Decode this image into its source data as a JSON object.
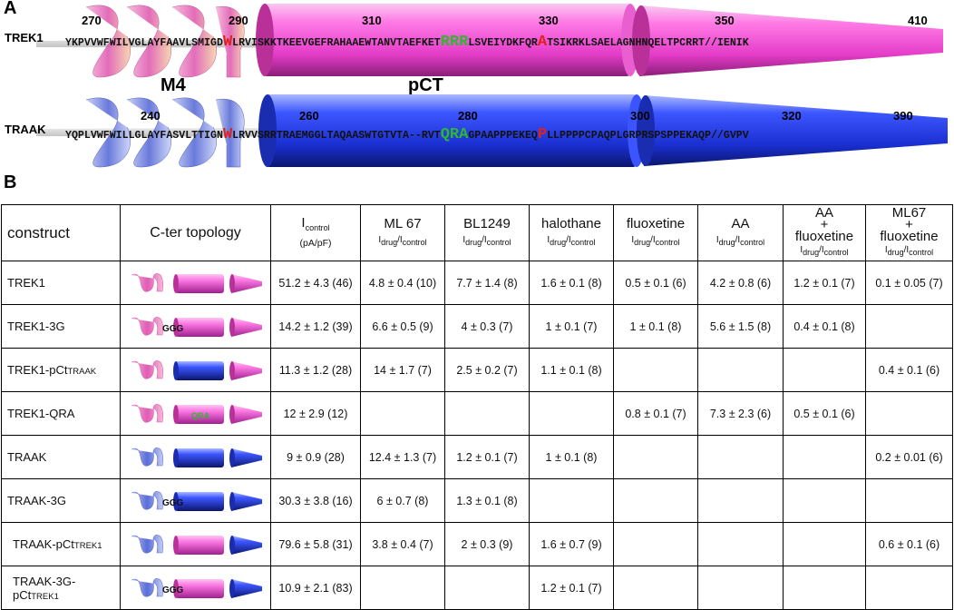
{
  "panels": {
    "a": "A",
    "b": "B"
  },
  "trek1": {
    "label": "TREK1",
    "sequence_pre": "YKPVVWFWILVGLAYFAAVLSMIGD",
    "red_w": "W",
    "sequence_mid": "LRVISKKTKEEVGEFRAHAAEWTANVTAEFKET",
    "green_motif": "RRR",
    "sequence_mid2": "LSVEIYDKFQR",
    "red_a": "A",
    "sequence_post": "TSIKRKLSAELAGNHNQELTPCRRT//IENIK",
    "positions": [
      "270",
      "290",
      "310",
      "330",
      "350",
      "410"
    ]
  },
  "traak": {
    "label": "TRAAK",
    "sequence_pre": "YQPLVWFWILLGLAYFASVLTTIGN",
    "red_w": "W",
    "sequence_mid": "LRVVSRRTRAEMGGLTAQAASWTGTVTA--RVT",
    "green_motif": "QRA",
    "sequence_mid2": "GPAAPPPEKEQ",
    "red_p": "P",
    "sequence_post": "LLPPPPCPAQPLGRPRSPSPPEKAQP//GVPV",
    "positions": [
      "240",
      "260",
      "280",
      "300",
      "320",
      "390"
    ]
  },
  "labels": {
    "m4": "M4",
    "pct": "pCT"
  },
  "colors": {
    "trek1": "#e85fd0",
    "traak": "#2a3fe0",
    "motif_green": "#2db82d",
    "red": "#e0201e"
  },
  "table": {
    "headers": {
      "construct": "construct",
      "topology": "C-ter topology",
      "icontrol_main": "I",
      "icontrol_sub": "control",
      "icontrol_unit": "(pA/pF)",
      "cols": [
        {
          "name": "ML 67"
        },
        {
          "name": "BL1249"
        },
        {
          "name": "halothane"
        },
        {
          "name": "fluoxetine"
        },
        {
          "name": "AA"
        },
        {
          "name1": "AA",
          "plus": "+",
          "name2": "fluoxetine"
        },
        {
          "name1": "ML67",
          "plus": "+",
          "name2": "fluoxetine"
        }
      ],
      "ratio_i": "I",
      "ratio_drug": "drug",
      "ratio_slash": "/I",
      "ratio_control": "control"
    },
    "rows": [
      {
        "construct": "TREK1",
        "construct_sub": "",
        "topology": "trek1",
        "icontrol": "51.2 ± 4.3 (46)",
        "ml67": "4.8 ± 0.4 (10)",
        "bl1249": "7.7 ± 1.4 (8)",
        "halothane": "1.6 ± 0.1 (8)",
        "fluoxetine": "0.5 ± 0.1 (6)",
        "aa": "4.2 ± 0.8 (6)",
        "aa_fluox": "1.2 ± 0.1 (7)",
        "ml67_fluox": "0.1 ± 0.05 (7)"
      },
      {
        "construct": "TREK1-3G",
        "construct_sub": "",
        "topology": "trek1-3g",
        "icontrol": "14.2 ± 1.2 (39)",
        "ml67": "6.6 ± 0.5 (9)",
        "bl1249": "4 ± 0.3 (7)",
        "halothane": "1 ± 0.1 (7)",
        "fluoxetine": "1 ± 0.1 (8)",
        "aa": "5.6 ± 1.5 (8)",
        "aa_fluox": "0.4 ± 0.1 (8)",
        "ml67_fluox": ""
      },
      {
        "construct": "TREK1-pCt",
        "construct_sub": "TRAAK",
        "topology": "trek1-pct",
        "icontrol": "11.3 ± 1.2 (28)",
        "ml67": "14 ± 1.7 (7)",
        "bl1249": "2.5 ± 0.2 (7)",
        "halothane": "1.1 ± 0.1 (8)",
        "fluoxetine": "",
        "aa": "",
        "aa_fluox": "",
        "ml67_fluox": "0.4 ± 0.1 (6)"
      },
      {
        "construct": "TREK1-QRA",
        "construct_sub": "",
        "topology": "trek1-qra",
        "icontrol": "12 ± 2.9 (12)",
        "ml67": "",
        "bl1249": "",
        "halothane": "",
        "fluoxetine": "0.8 ± 0.1 (7)",
        "aa": "7.3 ± 2.3 (6)",
        "aa_fluox": "0.5 ± 0.1 (6)",
        "ml67_fluox": ""
      },
      {
        "construct": "TRAAK",
        "construct_sub": "",
        "topology": "traak",
        "icontrol": "9 ± 0.9 (28)",
        "ml67": "12.4 ± 1.3 (7)",
        "bl1249": "1.2 ± 0.1 (7)",
        "halothane": "1 ± 0.1 (8)",
        "fluoxetine": "",
        "aa": "",
        "aa_fluox": "",
        "ml67_fluox": "0.2 ± 0.01 (6)"
      },
      {
        "construct": "TRAAK-3G",
        "construct_sub": "",
        "topology": "traak-3g",
        "icontrol": "30.3 ± 3.8 (16)",
        "ml67": "6 ± 0.7 (8)",
        "bl1249": "1.3 ± 0.1 (8)",
        "halothane": "",
        "fluoxetine": "",
        "aa": "",
        "aa_fluox": "",
        "ml67_fluox": ""
      },
      {
        "construct": "TRAAK-pCt",
        "construct_sub": "TREK1",
        "topology": "traak-pct",
        "icontrol": "79.6 ± 5.8 (31)",
        "ml67": "3.8 ± 0.4 (7)",
        "bl1249": "2 ± 0.3 (9)",
        "halothane": "1.6 ± 0.7 (9)",
        "fluoxetine": "",
        "aa": "",
        "aa_fluox": "",
        "ml67_fluox": "0.6 ± 0.1 (6)"
      },
      {
        "construct": "TRAAK-3G-pCt",
        "construct_sub": "TREK1",
        "topology": "traak-3g-pct",
        "icontrol": "10.9 ± 2.1 (83)",
        "ml67": "",
        "bl1249": "",
        "halothane": "1.2 ± 0.1 (7)",
        "fluoxetine": "",
        "aa": "",
        "aa_fluox": "",
        "ml67_fluox": ""
      }
    ],
    "topo_labels": {
      "ggg": "GGG",
      "qra": "QRA"
    }
  }
}
